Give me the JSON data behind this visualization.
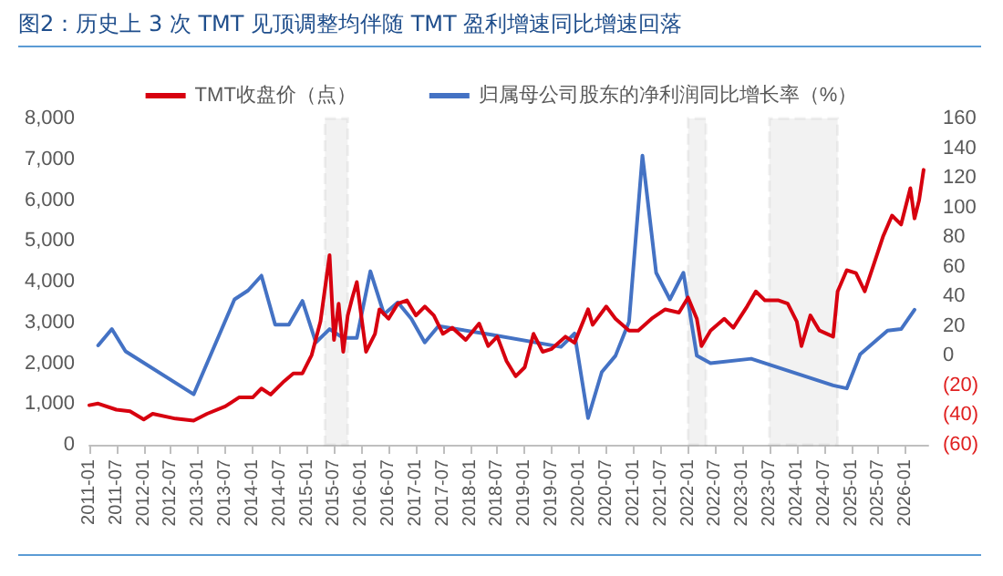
{
  "chart_data": {
    "type": "line",
    "title": "图2：历史上 3 次 TMT 见顶调整均伴随 TMT 盈利增速同比增速回落",
    "series": [
      {
        "name": "TMT收盘价（点）",
        "color": "#d7000f",
        "x": [
          "2011-01",
          "2011-03",
          "2011-07",
          "2011-10",
          "2012-01",
          "2012-03",
          "2012-08",
          "2012-12",
          "2013-03",
          "2013-07",
          "2013-10",
          "2014-01",
          "2014-03",
          "2014-05",
          "2014-08",
          "2014-10",
          "2014-12",
          "2015-02",
          "2015-04",
          "2015-06",
          "2015-07",
          "2015-08",
          "2015-09",
          "2015-10",
          "2015-11",
          "2015-12",
          "2016-02",
          "2016-04",
          "2016-05",
          "2016-07",
          "2016-09",
          "2016-11",
          "2017-01",
          "2017-03",
          "2017-05",
          "2017-07",
          "2017-09",
          "2017-12",
          "2018-03",
          "2018-05",
          "2018-07",
          "2018-09",
          "2018-11",
          "2019-01",
          "2019-03",
          "2019-05",
          "2019-07",
          "2019-10",
          "2019-12",
          "2020-03",
          "2020-04",
          "2020-07",
          "2020-09",
          "2020-12",
          "2021-02",
          "2021-05",
          "2021-08",
          "2021-11",
          "2022-01",
          "2022-03",
          "2022-04",
          "2022-06",
          "2022-09",
          "2022-11",
          "2023-02",
          "2023-04",
          "2023-06",
          "2023-09",
          "2023-11",
          "2024-01",
          "2024-02",
          "2024-04",
          "2024-06",
          "2024-09",
          "2024-10",
          "2024-12",
          "2025-02",
          "2025-04",
          "2025-06",
          "2025-08",
          "2025-10",
          "2025-12",
          "2026-02",
          "2026-03",
          "2026-04",
          "2026-05"
        ],
        "values": [
          970,
          1010,
          860,
          820,
          620,
          760,
          640,
          590,
          760,
          940,
          1160,
          1160,
          1380,
          1230,
          1560,
          1750,
          1750,
          2200,
          3020,
          4650,
          2570,
          3460,
          2280,
          3170,
          3610,
          3990,
          2280,
          2720,
          3320,
          3090,
          3460,
          3540,
          3170,
          3390,
          3170,
          2720,
          2870,
          2570,
          2970,
          2420,
          2650,
          2050,
          1680,
          1900,
          2720,
          2280,
          2350,
          2650,
          2500,
          3320,
          2940,
          3390,
          3090,
          2800,
          2800,
          3090,
          3320,
          3240,
          3610,
          3090,
          2420,
          2800,
          3090,
          2870,
          3390,
          3760,
          3540,
          3540,
          3460,
          3020,
          2420,
          3170,
          2800,
          2650,
          3760,
          4280,
          4210,
          3760,
          4430,
          5100,
          5620,
          5400,
          6290,
          5550,
          6000,
          6740
        ]
      },
      {
        "name": "归属母公司股东的净利润同比增长率（%）",
        "color": "#4472c4",
        "axis": "y2",
        "x": [
          "2011-03",
          "2011-06",
          "2011-09",
          "2012-12",
          "2013-09",
          "2013-12",
          "2014-03",
          "2014-06",
          "2014-09",
          "2014-12",
          "2015-03",
          "2015-06",
          "2015-09",
          "2015-12",
          "2016-03",
          "2016-06",
          "2016-09",
          "2016-12",
          "2017-03",
          "2017-06",
          "2018-06",
          "2019-09",
          "2019-12",
          "2020-03",
          "2020-06",
          "2020-09",
          "2020-12",
          "2021-03",
          "2021-06",
          "2021-09",
          "2021-12",
          "2022-03",
          "2022-06",
          "2023-03",
          "2024-09",
          "2024-12",
          "2025-03",
          "2025-09",
          "2025-12",
          "2026-03"
        ],
        "values": [
          7,
          18,
          3,
          -26,
          38,
          44,
          54,
          21,
          21,
          37,
          9,
          18,
          12,
          12,
          57,
          28,
          36,
          25,
          9,
          20,
          14,
          6,
          15,
          -42,
          -11,
          0,
          23,
          135,
          56,
          38,
          56,
          0,
          -5,
          -2,
          -20,
          -22,
          1,
          17,
          18,
          31
        ]
      }
    ],
    "xlim": [
      "2011-01",
      "2026-06"
    ],
    "xticks": [
      "2011-01",
      "2011-07",
      "2012-01",
      "2012-07",
      "2013-01",
      "2013-07",
      "2014-01",
      "2014-07",
      "2015-01",
      "2015-07",
      "2016-01",
      "2016-07",
      "2017-01",
      "2017-07",
      "2018-01",
      "2018-07",
      "2019-01",
      "2019-07",
      "2020-01",
      "2020-07",
      "2021-01",
      "2021-07",
      "2022-01",
      "2022-07",
      "2023-01",
      "2023-07",
      "2024-01",
      "2024-07",
      "2025-01",
      "2025-07",
      "2026-01"
    ],
    "ylim": [
      0,
      8000
    ],
    "yticks": [
      0,
      {
        "value": 1000,
        "label": "1,000"
      },
      {
        "value": 2000,
        "label": "2,000"
      },
      {
        "value": 3000,
        "label": "3,000"
      },
      {
        "value": 4000,
        "label": "4,000"
      },
      {
        "value": 5000,
        "label": "5,000"
      },
      {
        "value": 6000,
        "label": "6,000"
      },
      {
        "value": 7000,
        "label": "7,000"
      },
      {
        "value": 8000,
        "label": "8,000"
      }
    ],
    "y2lim": [
      -60,
      160
    ],
    "y2ticks": [
      {
        "value": -60,
        "label": "(60)"
      },
      {
        "value": -40,
        "label": "(40)"
      },
      {
        "value": -20,
        "label": "(20)"
      },
      0,
      20,
      40,
      60,
      80,
      100,
      120,
      140,
      160
    ],
    "bands": [
      {
        "axis": "x",
        "from": "2015-05",
        "to": "2015-10",
        "color": "#595959"
      },
      {
        "axis": "x",
        "from": "2022-01",
        "to": "2022-05",
        "color": "#595959"
      },
      {
        "axis": "x",
        "from": "2023-07",
        "to": "2024-10",
        "color": "#595959"
      }
    ],
    "legend": "top",
    "grid": false,
    "marker": "none",
    "line_style": "solid"
  }
}
